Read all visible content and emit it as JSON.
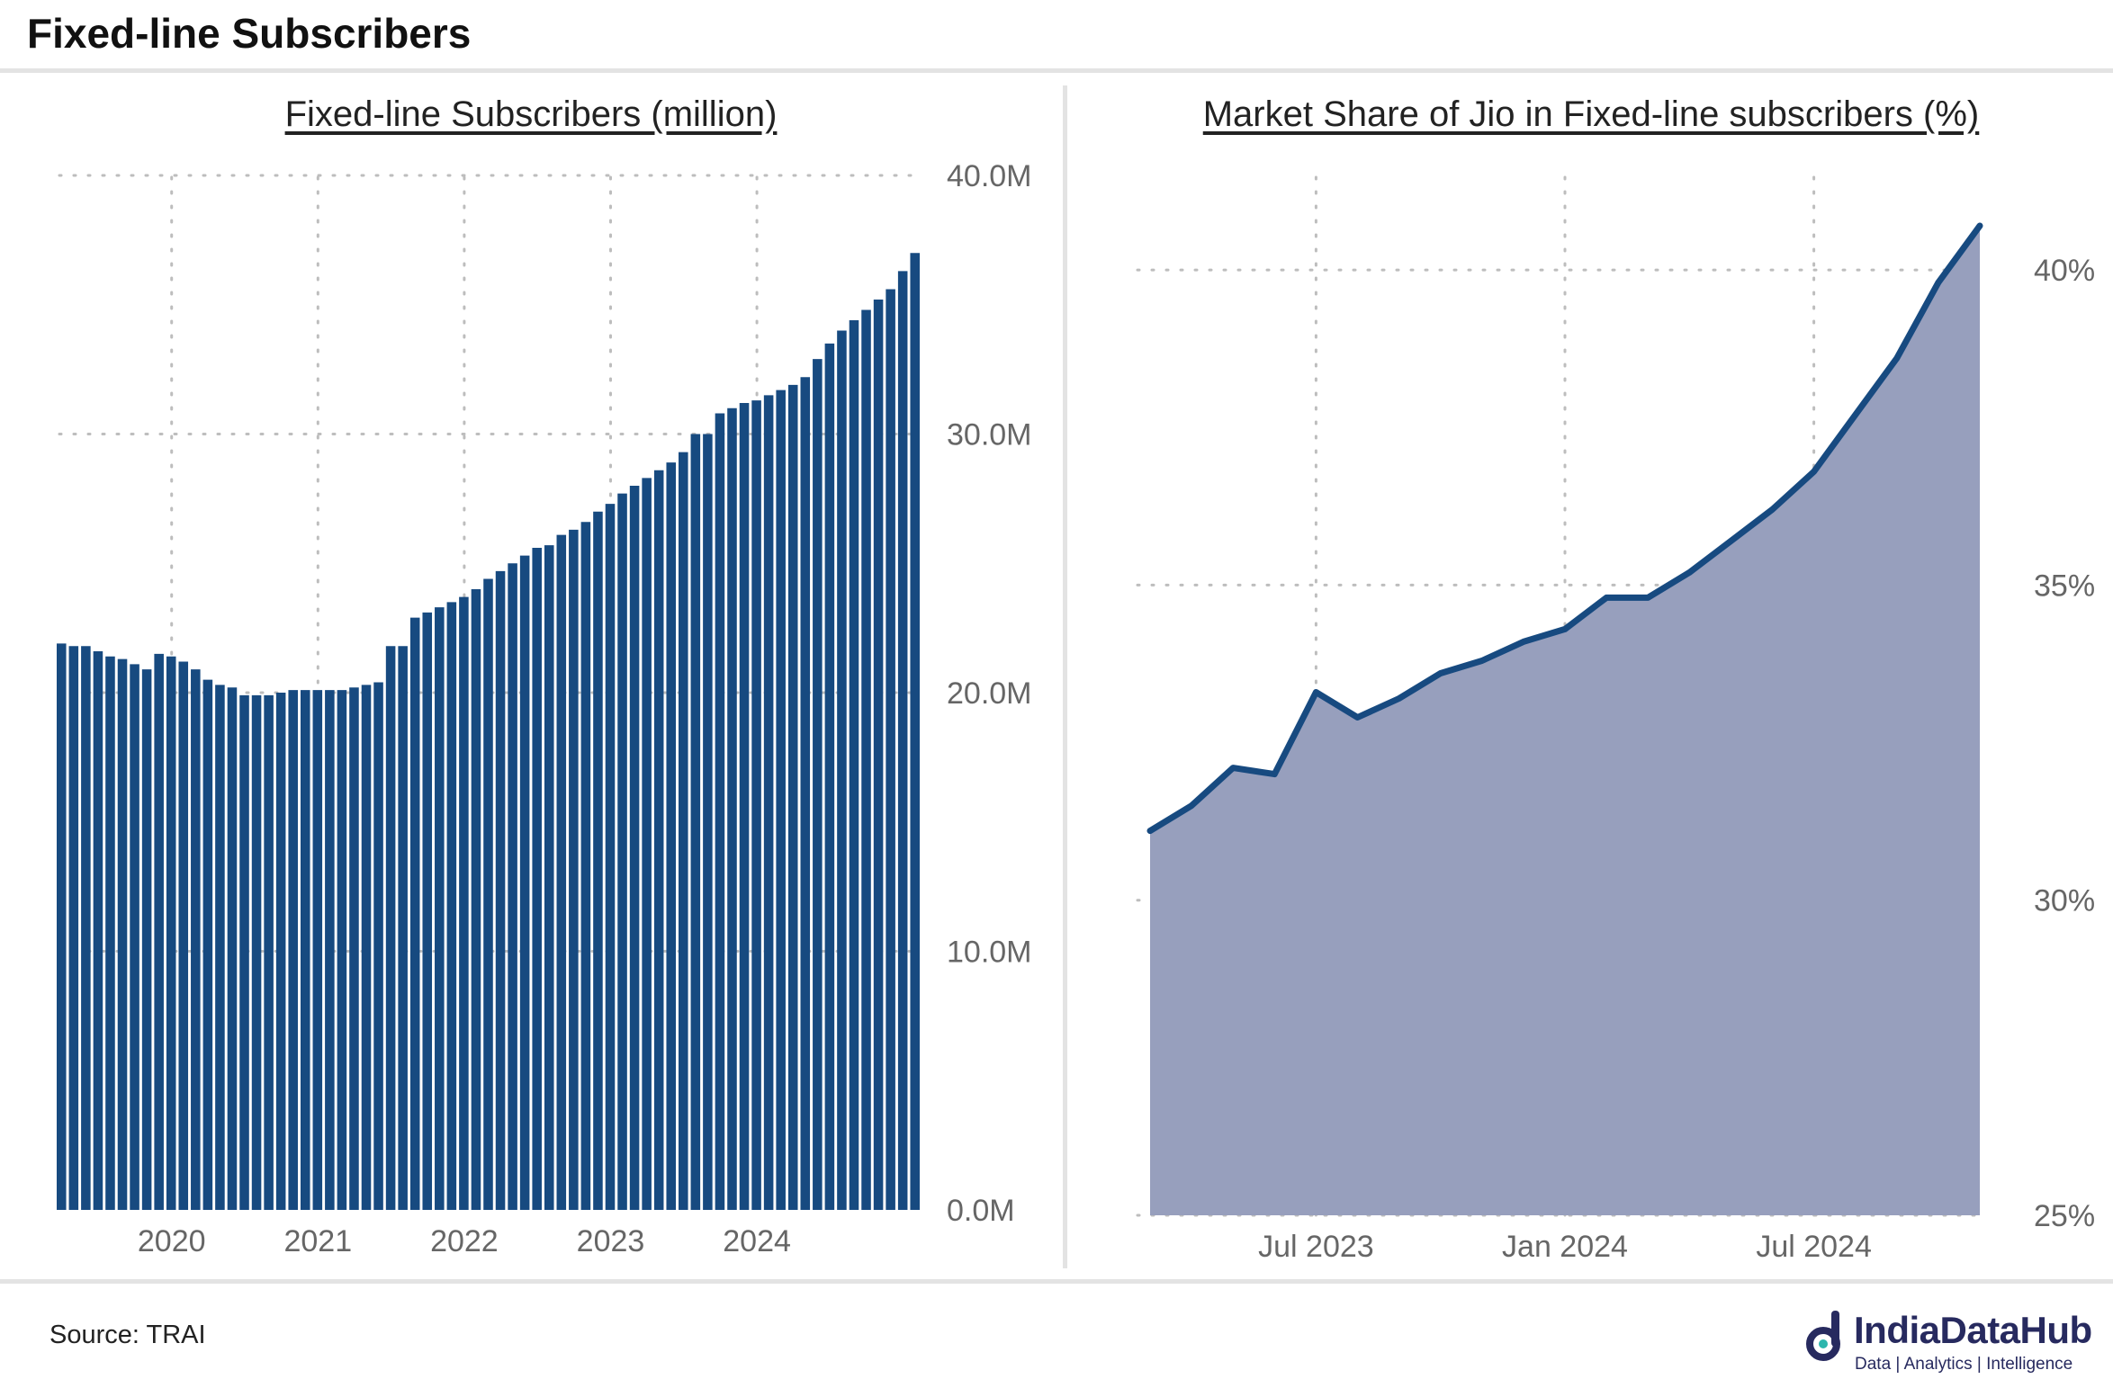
{
  "page": {
    "title": "Fixed-line Subscribers",
    "source": "Source: TRAI",
    "logo": {
      "name": "IndiaDataHub",
      "tagline": "Data | Analytics | Intelligence"
    }
  },
  "colors": {
    "bar": "#174a80",
    "line": "#174a80",
    "area": "#979fbd",
    "grid": "#bdbdbd",
    "tick": "#666666"
  },
  "chart_data": [
    {
      "type": "bar",
      "title": "Fixed-line Subscribers (million)",
      "x_start": "2019-04",
      "x_ticks": [
        "2020",
        "2021",
        "2022",
        "2023",
        "2024"
      ],
      "x_tick_dates": [
        "2020-01",
        "2021-01",
        "2022-01",
        "2023-01",
        "2024-01"
      ],
      "y_ticks": [
        "0.0M",
        "10.0M",
        "20.0M",
        "30.0M",
        "40.0M"
      ],
      "ylim": [
        0,
        40
      ],
      "y_tick_values": [
        0,
        10,
        20,
        30,
        40
      ],
      "axis_side": "right",
      "grid": true,
      "values": [
        21.9,
        21.8,
        21.8,
        21.6,
        21.4,
        21.3,
        21.1,
        20.9,
        21.5,
        21.4,
        21.2,
        20.9,
        20.5,
        20.3,
        20.2,
        19.9,
        19.9,
        19.9,
        20.0,
        20.1,
        20.1,
        20.1,
        20.1,
        20.1,
        20.2,
        20.3,
        20.4,
        21.8,
        21.8,
        22.9,
        23.1,
        23.3,
        23.5,
        23.7,
        24.0,
        24.4,
        24.7,
        25.0,
        25.3,
        25.6,
        25.7,
        26.1,
        26.3,
        26.6,
        27.0,
        27.3,
        27.7,
        28.0,
        28.3,
        28.6,
        28.9,
        29.3,
        30.0,
        30.0,
        30.8,
        31.0,
        31.2,
        31.3,
        31.5,
        31.7,
        31.9,
        32.2,
        32.9,
        33.5,
        34.0,
        34.4,
        34.8,
        35.2,
        35.6,
        36.3,
        37.0
      ],
      "footnote": ""
    },
    {
      "type": "area",
      "title": "Market Share of Jio in Fixed-line subscribers (%)",
      "x_start": "2023-03",
      "x_ticks": [
        "Jul 2023",
        "Jan 2024",
        "Jul 2024"
      ],
      "x_tick_dates": [
        "2023-07",
        "2024-01",
        "2024-07"
      ],
      "y_ticks": [
        "25%",
        "30%",
        "35%",
        "40%"
      ],
      "ylim": [
        25,
        41.5
      ],
      "y_tick_values": [
        25,
        30,
        35,
        40
      ],
      "axis_side": "right",
      "grid": true,
      "values": [
        31.1,
        31.5,
        32.1,
        32.0,
        33.3,
        32.9,
        33.2,
        33.6,
        33.8,
        34.1,
        34.3,
        34.8,
        34.8,
        35.2,
        35.7,
        36.2,
        36.8,
        37.7,
        38.6,
        39.8,
        40.7
      ]
    }
  ]
}
